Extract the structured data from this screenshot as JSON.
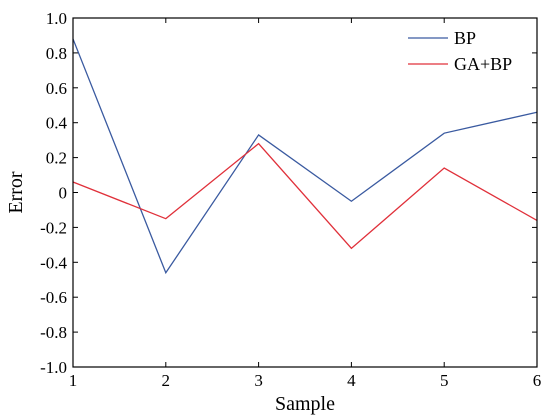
{
  "chart_data": {
    "type": "line",
    "title": "",
    "xlabel": "Sample",
    "ylabel": "Error",
    "x": [
      1,
      2,
      3,
      4,
      5,
      6
    ],
    "xlim": [
      1,
      6
    ],
    "ylim": [
      -1.0,
      1.0
    ],
    "x_ticks": [
      "1",
      "2",
      "3",
      "4",
      "5",
      "6"
    ],
    "y_ticks": [
      "1.0",
      "0.8",
      "0.6",
      "0.4",
      "0.2",
      "0",
      "-0.2",
      "-0.4",
      "-0.6",
      "-0.8",
      "-1.0"
    ],
    "y_tick_values": [
      1.0,
      0.8,
      0.6,
      0.4,
      0.2,
      0,
      -0.2,
      -0.4,
      -0.6,
      -0.8,
      -1.0
    ],
    "grid": false,
    "legend_position": "top-right",
    "series": [
      {
        "name": "BP",
        "color": "#3a5aa0",
        "values": [
          0.88,
          -0.46,
          0.33,
          -0.05,
          0.34,
          0.46
        ]
      },
      {
        "name": "GA+BP",
        "color": "#e0303a",
        "values": [
          0.06,
          -0.15,
          0.28,
          -0.32,
          0.14,
          -0.16
        ]
      }
    ]
  }
}
